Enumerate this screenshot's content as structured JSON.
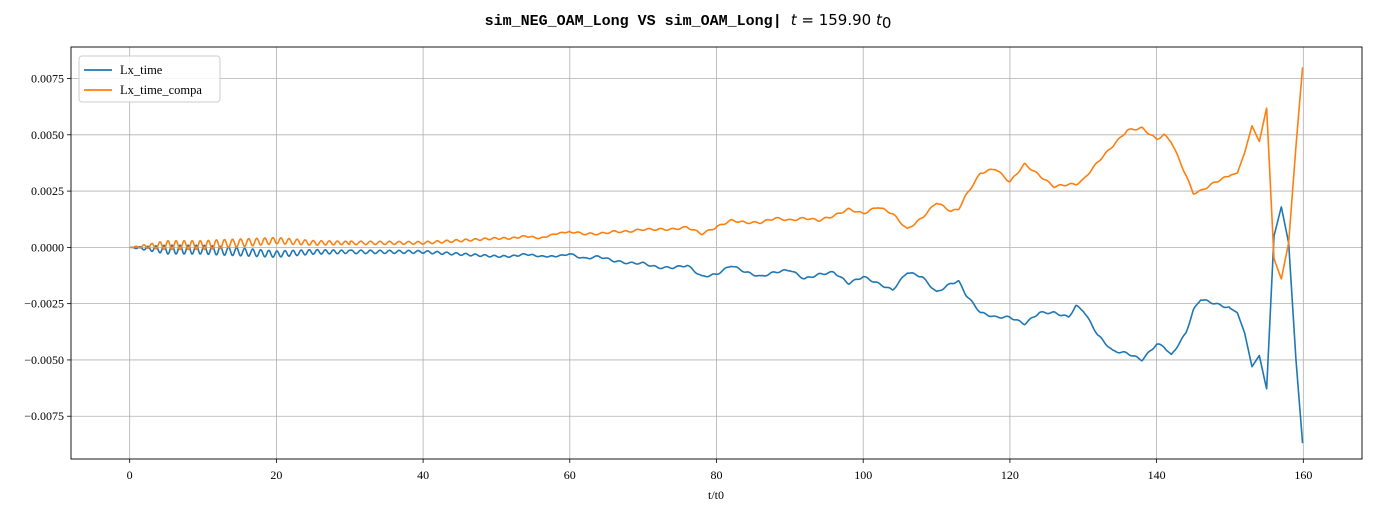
{
  "chart_data": {
    "type": "line",
    "title": {
      "sim_a": "sim_NEG_OAM_Long",
      "vs": " VS ",
      "sim_b": "sim_OAM_Long",
      "sep": "| ",
      "t_label": "t",
      "eq": " = 159.90 ",
      "t0_base": "t",
      "t0_sub": "0"
    },
    "xlabel": "t/t0",
    "ylabel": "",
    "xlim": [
      -8,
      168
    ],
    "ylim": [
      -0.0094,
      0.0089
    ],
    "xticks": [
      0,
      20,
      40,
      60,
      80,
      100,
      120,
      140,
      160
    ],
    "xtick_labels": [
      "0",
      "20",
      "40",
      "60",
      "80",
      "100",
      "120",
      "140",
      "160"
    ],
    "yticks": [
      -0.0075,
      -0.005,
      -0.0025,
      0.0,
      0.0025,
      0.005,
      0.0075
    ],
    "ytick_labels": [
      "−0.0075",
      "−0.0050",
      "−0.0025",
      "0.0000",
      "0.0025",
      "0.0050",
      "0.0075"
    ],
    "grid": true,
    "legend_position": "top-left",
    "series": [
      {
        "name": "Lx_time",
        "color": "#1f77b4",
        "x": [
          0,
          5,
          10,
          15,
          20,
          25,
          30,
          35,
          40,
          45,
          50,
          52,
          54,
          56,
          58,
          60,
          62,
          64,
          66,
          68,
          70,
          72,
          74,
          76,
          78,
          80,
          82,
          84,
          86,
          88,
          90,
          92,
          94,
          96,
          98,
          100,
          102,
          104,
          106,
          108,
          110,
          112,
          113,
          114,
          116,
          118,
          120,
          122,
          124,
          126,
          128,
          129,
          130,
          132,
          134,
          136,
          138,
          140,
          141,
          142,
          144,
          145,
          146,
          148,
          150,
          151,
          152,
          153,
          154,
          155,
          156,
          157,
          158,
          159,
          159.9
        ],
        "y": [
          0,
          -0.0001,
          -0.0001,
          -0.0002,
          -0.0003,
          -0.0002,
          -0.0002,
          -0.0002,
          -0.0002,
          -0.0003,
          -0.0004,
          -0.0004,
          -0.0003,
          -0.0004,
          -0.0004,
          -0.0003,
          -0.0005,
          -0.0004,
          -0.0006,
          -0.0007,
          -0.0007,
          -0.0009,
          -0.0009,
          -0.0008,
          -0.0013,
          -0.0012,
          -0.0008,
          -0.0011,
          -0.0013,
          -0.0011,
          -0.001,
          -0.0014,
          -0.0012,
          -0.0011,
          -0.0016,
          -0.0013,
          -0.0016,
          -0.0019,
          -0.0011,
          -0.0013,
          -0.002,
          -0.0016,
          -0.0015,
          -0.0021,
          -0.0029,
          -0.0031,
          -0.0031,
          -0.0034,
          -0.0029,
          -0.0029,
          -0.0031,
          -0.0026,
          -0.0028,
          -0.0039,
          -0.0046,
          -0.0047,
          -0.005,
          -0.0043,
          -0.0044,
          -0.0048,
          -0.0038,
          -0.0028,
          -0.0023,
          -0.0025,
          -0.0027,
          -0.0029,
          -0.0038,
          -0.0053,
          -0.0048,
          -0.0063,
          0.0005,
          0.0018,
          0.0002,
          -0.005,
          -0.0087
        ]
      },
      {
        "name": "Lx_time_compa",
        "color": "#ff7f0e",
        "x": [
          0,
          5,
          10,
          15,
          20,
          25,
          30,
          35,
          40,
          45,
          50,
          52,
          54,
          56,
          58,
          60,
          62,
          64,
          66,
          68,
          70,
          72,
          74,
          76,
          78,
          80,
          82,
          84,
          86,
          88,
          90,
          92,
          94,
          96,
          98,
          100,
          102,
          104,
          106,
          108,
          110,
          112,
          113,
          114,
          116,
          118,
          120,
          122,
          124,
          126,
          128,
          129,
          130,
          132,
          134,
          136,
          138,
          140,
          141,
          142,
          144,
          145,
          146,
          148,
          150,
          151,
          152,
          153,
          154,
          155,
          156,
          157,
          158,
          159,
          159.9
        ],
        "y": [
          0,
          0.0001,
          0.0001,
          0.0002,
          0.0003,
          0.0002,
          0.0002,
          0.0002,
          0.0002,
          0.0003,
          0.0004,
          0.0004,
          0.0005,
          0.0004,
          0.0006,
          0.0007,
          0.0006,
          0.0006,
          0.0007,
          0.0007,
          0.0008,
          0.0008,
          0.0008,
          0.0009,
          0.0006,
          0.0009,
          0.0012,
          0.0011,
          0.0011,
          0.0013,
          0.0012,
          0.0013,
          0.0012,
          0.0014,
          0.0017,
          0.0015,
          0.0018,
          0.0015,
          0.0008,
          0.0013,
          0.002,
          0.0016,
          0.0017,
          0.0023,
          0.0033,
          0.0035,
          0.0029,
          0.0037,
          0.0032,
          0.0027,
          0.0028,
          0.0028,
          0.003,
          0.0038,
          0.0045,
          0.0052,
          0.0053,
          0.0048,
          0.005,
          0.0047,
          0.0032,
          0.0024,
          0.0025,
          0.0029,
          0.0032,
          0.0033,
          0.0042,
          0.0054,
          0.0047,
          0.0062,
          -0.0005,
          -0.0014,
          0.0002,
          0.0045,
          0.008
        ]
      }
    ]
  }
}
